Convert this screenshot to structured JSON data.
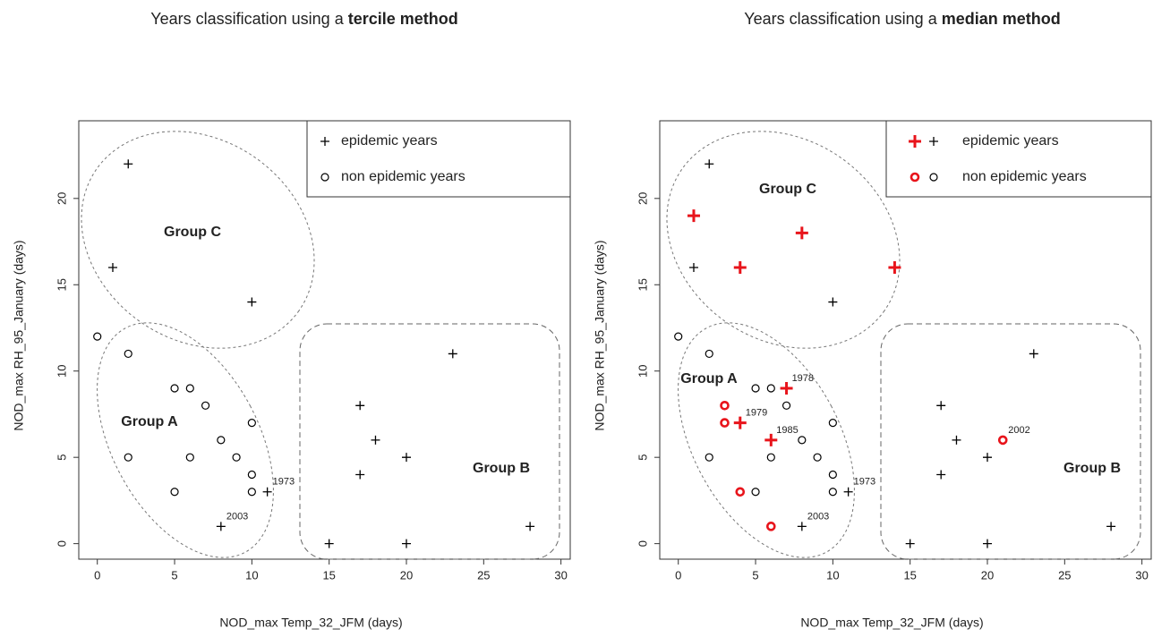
{
  "chart_data": [
    {
      "type": "scatter",
      "title": [
        "Years classification using a ",
        "tercile method"
      ],
      "xlabel": "NOD_max Temp_32_JFM (days)",
      "ylabel": "NOD_max RH_95_January (days)",
      "xlim": [
        -1.2,
        30.6
      ],
      "ylim": [
        -0.9,
        24.5
      ],
      "xticks": [
        0,
        5,
        10,
        15,
        20,
        25,
        30
      ],
      "yticks": [
        0,
        5,
        10,
        15,
        20
      ],
      "grid": false,
      "legend": "upper right",
      "annotations": [
        "Group C",
        "Group A",
        "Group B"
      ],
      "series": [
        {
          "name": "epidemic years",
          "marker": "plus",
          "color": "#000000",
          "x": [
            2,
            1,
            10,
            23,
            17,
            18,
            20,
            17,
            11,
            8,
            15,
            20,
            28
          ],
          "y": [
            22,
            16,
            14,
            11,
            8,
            6,
            5,
            4,
            3,
            1,
            0,
            0,
            1
          ],
          "labels": [
            null,
            null,
            null,
            null,
            null,
            null,
            null,
            null,
            "1973",
            "2003",
            null,
            null,
            null
          ]
        },
        {
          "name": "non epidemic years",
          "marker": "circle",
          "color": "#000000",
          "x": [
            0,
            2,
            5,
            6,
            7,
            10,
            8,
            2,
            6,
            9,
            10,
            5,
            10
          ],
          "y": [
            12,
            11,
            9,
            9,
            8,
            7,
            6,
            5,
            5,
            5,
            4,
            3,
            3
          ]
        }
      ]
    },
    {
      "type": "scatter",
      "title": [
        "Years classification using a ",
        "median method"
      ],
      "xlabel": "NOD_max Temp_32_JFM (days)",
      "ylabel": "NOD_max RH_95_January (days)",
      "xlim": [
        -1.2,
        30.6
      ],
      "ylim": [
        -0.9,
        24.5
      ],
      "xticks": [
        0,
        5,
        10,
        15,
        20,
        25,
        30
      ],
      "yticks": [
        0,
        5,
        10,
        15,
        20
      ],
      "grid": false,
      "legend": "upper right",
      "annotations": [
        "Group C",
        "Group A",
        "Group B"
      ],
      "series": [
        {
          "name": "epidemic years",
          "marker": "plus",
          "color": "#000000",
          "x": [
            2,
            1,
            10,
            23,
            17,
            18,
            20,
            17,
            11,
            8,
            15,
            20,
            28
          ],
          "y": [
            22,
            16,
            14,
            11,
            8,
            6,
            5,
            4,
            3,
            1,
            0,
            0,
            1
          ],
          "labels": [
            null,
            null,
            null,
            null,
            null,
            null,
            null,
            null,
            "1973",
            "2003",
            null,
            null,
            null
          ],
          "highlight": {
            "color": "#e8141b",
            "x": [
              1,
              4,
              8,
              14,
              7,
              4,
              6
            ],
            "y": [
              19,
              16,
              18,
              16,
              9,
              7,
              6
            ],
            "labels": [
              null,
              null,
              null,
              null,
              "1978",
              "1979",
              "1985"
            ]
          }
        },
        {
          "name": "non epidemic years",
          "marker": "circle",
          "color": "#000000",
          "x": [
            0,
            2,
            5,
            6,
            7,
            10,
            8,
            2,
            6,
            9,
            10,
            5,
            10
          ],
          "y": [
            12,
            11,
            9,
            9,
            8,
            7,
            6,
            5,
            5,
            5,
            4,
            3,
            3
          ],
          "highlight": {
            "color": "#e8141b",
            "x": [
              3,
              3,
              4,
              6,
              21
            ],
            "y": [
              8,
              7,
              3,
              1,
              6
            ],
            "labels": [
              null,
              null,
              null,
              null,
              "2002"
            ]
          }
        }
      ]
    }
  ]
}
